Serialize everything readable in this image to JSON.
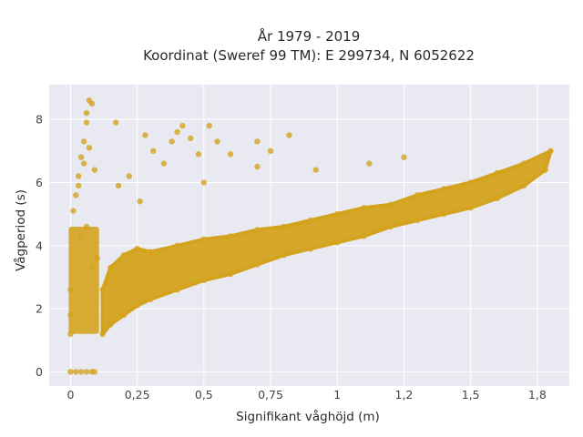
{
  "chart_data": {
    "type": "scatter",
    "title_line1": "År 1979 - 2019",
    "title_line2": "Koordinat (Sweref 99 TM): E 299734, N 6052622",
    "xlabel": "Signifikant våghöjd (m)",
    "ylabel": "Vågperiod (s)",
    "xlim": [
      -0.08,
      1.87
    ],
    "ylim": [
      -0.45,
      9.1
    ],
    "x_ticks": [
      0,
      0.25,
      0.5,
      0.75,
      1,
      1.25,
      1.5,
      1.75
    ],
    "x_tick_labels": [
      "0",
      "0,25",
      "0,5",
      "0,75",
      "1",
      "1,2",
      "1,5",
      "1,8"
    ],
    "y_ticks": [
      0,
      2,
      4,
      6,
      8
    ],
    "y_tick_labels": [
      "0",
      "2",
      "4",
      "6",
      "8"
    ],
    "grid": true,
    "legend": "none",
    "colors": {
      "marker": "#D4A31E",
      "plot_bg": "#E9E9F2",
      "grid": "#FFFFFF"
    },
    "points": [
      [
        0.0,
        0
      ],
      [
        0.02,
        0
      ],
      [
        0.04,
        0
      ],
      [
        0.06,
        0
      ],
      [
        0.08,
        0
      ],
      [
        0.09,
        0
      ],
      [
        0.0,
        1.2
      ],
      [
        0.0,
        1.8
      ],
      [
        0.0,
        2.6
      ],
      [
        0.01,
        5.1
      ],
      [
        0.02,
        5.6
      ],
      [
        0.03,
        6.2
      ],
      [
        0.04,
        6.8
      ],
      [
        0.05,
        7.3
      ],
      [
        0.06,
        7.9
      ],
      [
        0.07,
        8.6
      ],
      [
        0.08,
        8.5
      ],
      [
        0.06,
        8.2
      ],
      [
        0.03,
        5.9
      ],
      [
        0.05,
        6.6
      ],
      [
        0.07,
        7.1
      ],
      [
        0.09,
        6.4
      ],
      [
        0.04,
        4.3
      ],
      [
        0.06,
        4.6
      ],
      [
        0.08,
        3.3
      ],
      [
        0.1,
        3.6
      ],
      [
        0.12,
        1.2
      ],
      [
        0.15,
        1.5
      ],
      [
        0.2,
        1.8
      ],
      [
        0.25,
        2.1
      ],
      [
        0.3,
        2.3
      ],
      [
        0.4,
        2.6
      ],
      [
        0.5,
        2.9
      ],
      [
        0.6,
        3.1
      ],
      [
        0.7,
        3.4
      ],
      [
        0.8,
        3.7
      ],
      [
        0.9,
        3.9
      ],
      [
        1.0,
        4.1
      ],
      [
        1.1,
        4.3
      ],
      [
        1.2,
        4.6
      ],
      [
        1.3,
        4.8
      ],
      [
        1.4,
        5.0
      ],
      [
        1.5,
        5.2
      ],
      [
        1.6,
        5.5
      ],
      [
        1.7,
        5.9
      ],
      [
        1.78,
        6.4
      ],
      [
        0.12,
        2.6
      ],
      [
        0.15,
        3.3
      ],
      [
        0.2,
        3.7
      ],
      [
        0.25,
        3.9
      ],
      [
        0.3,
        3.8
      ],
      [
        0.4,
        4.0
      ],
      [
        0.5,
        4.2
      ],
      [
        0.6,
        4.3
      ],
      [
        0.7,
        4.5
      ],
      [
        0.8,
        4.6
      ],
      [
        0.9,
        4.8
      ],
      [
        1.0,
        5.0
      ],
      [
        1.1,
        5.2
      ],
      [
        1.2,
        5.3
      ],
      [
        1.3,
        5.6
      ],
      [
        1.4,
        5.8
      ],
      [
        1.5,
        6.0
      ],
      [
        1.6,
        6.3
      ],
      [
        1.7,
        6.6
      ],
      [
        1.8,
        7.0
      ],
      [
        0.28,
        7.5
      ],
      [
        0.31,
        7.0
      ],
      [
        0.35,
        6.6
      ],
      [
        0.38,
        7.3
      ],
      [
        0.42,
        7.8
      ],
      [
        0.45,
        7.4
      ],
      [
        0.48,
        6.9
      ],
      [
        0.52,
        7.8
      ],
      [
        0.55,
        7.3
      ],
      [
        0.6,
        6.9
      ],
      [
        0.7,
        6.5
      ],
      [
        0.75,
        7.0
      ],
      [
        0.82,
        7.5
      ],
      [
        0.92,
        6.4
      ],
      [
        1.12,
        6.6
      ],
      [
        1.25,
        6.8
      ],
      [
        0.18,
        5.9
      ],
      [
        0.22,
        6.2
      ],
      [
        0.26,
        5.4
      ],
      [
        0.5,
        6.0
      ],
      [
        0.17,
        7.9
      ],
      [
        0.4,
        7.6
      ],
      [
        0.7,
        7.3
      ]
    ]
  }
}
